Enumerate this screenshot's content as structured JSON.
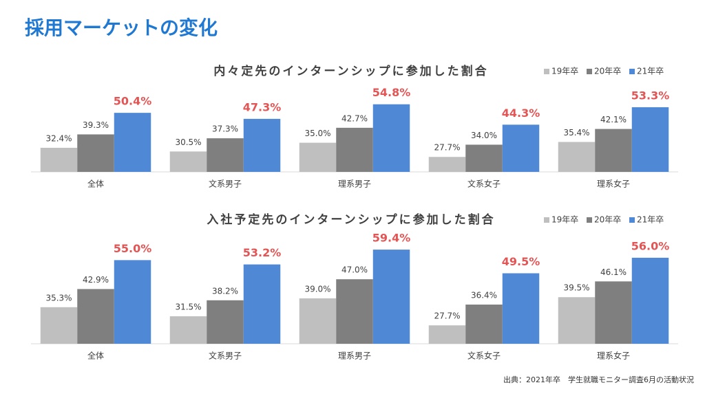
{
  "title": "採用マーケットの変化",
  "source": "出典：2021年卒　学生就職モニター調査6月の活動状況",
  "chart_data": [
    {
      "type": "bar",
      "title": "内々定先のインターンシップに参加した割合",
      "categories": [
        "全体",
        "文系男子",
        "理系男子",
        "文系女子",
        "理系女子"
      ],
      "ylim": [
        20,
        60
      ],
      "legend": "top-right",
      "series": [
        {
          "name": "19年卒",
          "color": "#bfbfbf",
          "values": [
            32.4,
            30.5,
            35.0,
            27.7,
            35.4
          ],
          "value_labels": [
            "32.4%",
            "30.5%",
            "35.0%",
            "27.7%",
            "35.4%"
          ]
        },
        {
          "name": "20年卒",
          "color": "#7f7f7f",
          "values": [
            39.3,
            37.3,
            42.7,
            34.0,
            42.1
          ],
          "value_labels": [
            "39.3%",
            "37.3%",
            "42.7%",
            "34.0%",
            "42.1%"
          ]
        },
        {
          "name": "21年卒",
          "color": "#4f88d5",
          "values": [
            50.4,
            47.3,
            54.8,
            44.3,
            53.3
          ],
          "value_labels": [
            "50.4%",
            "47.3%",
            "54.8%",
            "44.3%",
            "53.3%"
          ]
        }
      ]
    },
    {
      "type": "bar",
      "title": "入社予定先のインターンシップに参加した割合",
      "categories": [
        "全体",
        "文系男子",
        "理系男子",
        "文系女子",
        "理系女子"
      ],
      "ylim": [
        20,
        60
      ],
      "legend": "top-right",
      "series": [
        {
          "name": "19年卒",
          "color": "#bfbfbf",
          "values": [
            35.3,
            31.5,
            39.0,
            27.7,
            39.5
          ],
          "value_labels": [
            "35.3%",
            "31.5%",
            "39.0%",
            "27.7%",
            "39.5%"
          ]
        },
        {
          "name": "20年卒",
          "color": "#7f7f7f",
          "values": [
            42.9,
            38.2,
            47.0,
            36.4,
            46.1
          ],
          "value_labels": [
            "42.9%",
            "38.2%",
            "47.0%",
            "36.4%",
            "46.1%"
          ]
        },
        {
          "name": "21年卒",
          "color": "#4f88d5",
          "values": [
            55.0,
            53.2,
            59.4,
            49.5,
            56.0
          ],
          "value_labels": [
            "55.0%",
            "53.2%",
            "59.4%",
            "49.5%",
            "56.0%"
          ]
        }
      ]
    }
  ]
}
